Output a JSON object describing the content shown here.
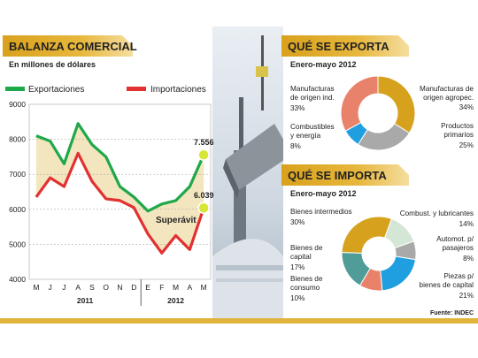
{
  "colors": {
    "gold": "#d6a21e",
    "green": "#1fa84a",
    "red": "#e23131",
    "highlight": "#d7e634",
    "band_gold": "#f3e6bf",
    "band_gray": "#e5e5e5"
  },
  "left_panel": {
    "title": "BALANZA COMERCIAL",
    "subtitle": "En millones de dólares",
    "annotation": "Superávit",
    "callouts": {
      "exp_last": "7.556",
      "imp_last": "6.039"
    }
  },
  "chart_data": {
    "type": "line",
    "x": [
      "M",
      "J",
      "J",
      "A",
      "S",
      "O",
      "N",
      "D",
      "E",
      "F",
      "M",
      "A",
      "M"
    ],
    "series": [
      {
        "name": "Exportaciones",
        "color": "#1fa84a",
        "values": [
          8100,
          7950,
          7300,
          8450,
          7850,
          7500,
          6650,
          6350,
          5950,
          6150,
          6250,
          6650,
          7556
        ]
      },
      {
        "name": "Importaciones",
        "color": "#e23131",
        "values": [
          6350,
          6900,
          6650,
          7600,
          6800,
          6300,
          6250,
          6050,
          5300,
          4750,
          5250,
          4850,
          6039
        ]
      }
    ],
    "ylim": [
      4000,
      9000
    ],
    "yticks": [
      4000,
      5000,
      6000,
      7000,
      8000,
      9000
    ],
    "years": [
      {
        "label": "2011",
        "from": 0,
        "to": 7
      },
      {
        "label": "2012",
        "from": 8,
        "to": 12
      }
    ],
    "grid": true,
    "legend": "top"
  },
  "exporta": {
    "title": "QUÉ SE EXPORTA",
    "subtitle": "Enero-mayo 2012",
    "type": "pie",
    "slices": [
      {
        "label_lines": [
          "Manufacturas de",
          "origen agropec."
        ],
        "value": 34,
        "pct": "34%",
        "color": "#d6a21e"
      },
      {
        "label_lines": [
          "Productos",
          "primarios"
        ],
        "value": 25,
        "pct": "25%",
        "color": "#a9a9a9"
      },
      {
        "label_lines": [
          "Combustibles",
          "y energía"
        ],
        "value": 8,
        "pct": "8%",
        "color": "#1f9fe0"
      },
      {
        "label_lines": [
          "Manufacturas",
          "de origen ind."
        ],
        "value": 33,
        "pct": "33%",
        "color": "#e9826b"
      }
    ]
  },
  "importa": {
    "title": "QUÉ SE IMPORTA",
    "subtitle": "Enero-mayo 2012",
    "type": "pie",
    "slices": [
      {
        "label_lines": [
          "Combust. y lubricantes"
        ],
        "value": 14,
        "pct": "14%",
        "color": "#d4e6d6"
      },
      {
        "label_lines": [
          "Automot. p/",
          "pasajeros"
        ],
        "value": 8,
        "pct": "8%",
        "color": "#a9a9a9"
      },
      {
        "label_lines": [
          "Piezas p/",
          "bienes de capital"
        ],
        "value": 21,
        "pct": "21%",
        "color": "#1f9fe0"
      },
      {
        "label_lines": [
          "Bienes de",
          "consumo"
        ],
        "value": 10,
        "pct": "10%",
        "color": "#e9826b"
      },
      {
        "label_lines": [
          "Bienes de",
          "capital"
        ],
        "value": 17,
        "pct": "17%",
        "color": "#4f9c98"
      },
      {
        "label_lines": [
          "Bienes intermedios"
        ],
        "value": 30,
        "pct": "30%",
        "color": "#d6a21e"
      }
    ]
  },
  "source": "Fuente: INDEC"
}
